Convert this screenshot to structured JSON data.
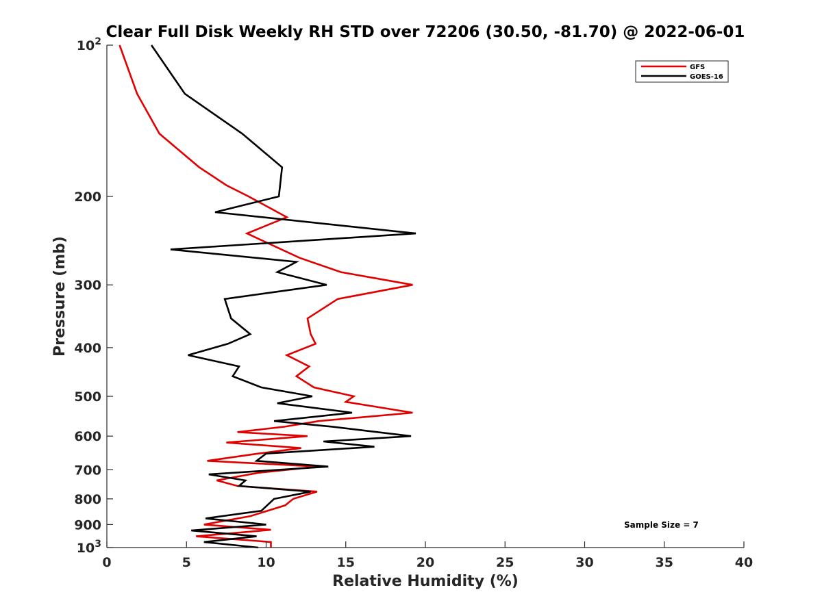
{
  "chart_data": {
    "type": "line",
    "title": "Clear Full Disk Weekly RH STD over 72206 (30.50, -81.70) @ 2022-06-01",
    "xlabel": "Relative Humidity (%)",
    "ylabel": "Pressure (mb)",
    "xlim": [
      0,
      40
    ],
    "ylim": [
      100,
      1000
    ],
    "y_scale": "log",
    "y_reversed": true,
    "grid": false,
    "legend_position": "top-right",
    "x_ticks": [
      0,
      5,
      10,
      15,
      20,
      25,
      30,
      35,
      40
    ],
    "x_tick_labels": [
      "0",
      "5",
      "10",
      "15",
      "20",
      "25",
      "30",
      "35",
      "40"
    ],
    "y_ticks": [
      100,
      200,
      300,
      400,
      500,
      600,
      700,
      800,
      900,
      1000
    ],
    "y_tick_labels": [
      {
        "base": "10",
        "exp": "2"
      },
      {
        "base": "200",
        "exp": ""
      },
      {
        "base": "300",
        "exp": ""
      },
      {
        "base": "400",
        "exp": ""
      },
      {
        "base": "500",
        "exp": ""
      },
      {
        "base": "600",
        "exp": ""
      },
      {
        "base": "700",
        "exp": ""
      },
      {
        "base": "800",
        "exp": ""
      },
      {
        "base": "900",
        "exp": ""
      },
      {
        "base": "10",
        "exp": "3"
      }
    ],
    "annotation": "Sample Size = 7",
    "series": [
      {
        "name": "GFS",
        "color": "#e00000",
        "points": [
          [
            0.8,
            100
          ],
          [
            1.9,
            125
          ],
          [
            3.3,
            150
          ],
          [
            5.8,
            175
          ],
          [
            7.5,
            190
          ],
          [
            8.9,
            200
          ],
          [
            11.3,
            220
          ],
          [
            8.8,
            237
          ],
          [
            12.1,
            265
          ],
          [
            14.7,
            283
          ],
          [
            19.2,
            300
          ],
          [
            14.5,
            320
          ],
          [
            12.6,
            350
          ],
          [
            12.8,
            376
          ],
          [
            13.1,
            393
          ],
          [
            11.3,
            414
          ],
          [
            12.7,
            436
          ],
          [
            11.9,
            456
          ],
          [
            13.0,
            480
          ],
          [
            15.5,
            500
          ],
          [
            15.0,
            513
          ],
          [
            19.2,
            539
          ],
          [
            13.3,
            560
          ],
          [
            11.1,
            575
          ],
          [
            8.2,
            589
          ],
          [
            12.6,
            600
          ],
          [
            7.5,
            618
          ],
          [
            12.2,
            634
          ],
          [
            9.5,
            650
          ],
          [
            6.3,
            672
          ],
          [
            13.3,
            690
          ],
          [
            9.5,
            710
          ],
          [
            6.9,
            735
          ],
          [
            8.2,
            754
          ],
          [
            13.2,
            774
          ],
          [
            11.7,
            800
          ],
          [
            11.2,
            824
          ],
          [
            9.0,
            866
          ],
          [
            6.1,
            900
          ],
          [
            10.3,
            922
          ],
          [
            5.6,
            950
          ],
          [
            10.3,
            975
          ],
          [
            10.3,
            1000
          ]
        ]
      },
      {
        "name": "GOES-16",
        "color": "#000000",
        "points": [
          [
            2.8,
            100
          ],
          [
            4.9,
            125
          ],
          [
            8.5,
            150
          ],
          [
            11.0,
            175
          ],
          [
            10.8,
            200
          ],
          [
            6.8,
            215
          ],
          [
            19.4,
            237
          ],
          [
            4.0,
            255
          ],
          [
            11.9,
            270
          ],
          [
            10.7,
            283
          ],
          [
            13.8,
            300
          ],
          [
            7.4,
            320
          ],
          [
            7.8,
            350
          ],
          [
            9.0,
            376
          ],
          [
            7.6,
            393
          ],
          [
            5.1,
            414
          ],
          [
            8.3,
            436
          ],
          [
            7.9,
            456
          ],
          [
            9.7,
            480
          ],
          [
            12.9,
            500
          ],
          [
            10.7,
            516
          ],
          [
            15.4,
            539
          ],
          [
            10.5,
            560
          ],
          [
            14.2,
            575
          ],
          [
            19.1,
            600
          ],
          [
            13.6,
            615
          ],
          [
            16.8,
            630
          ],
          [
            10.0,
            650
          ],
          [
            9.4,
            672
          ],
          [
            13.9,
            690
          ],
          [
            6.4,
            715
          ],
          [
            8.7,
            735
          ],
          [
            8.3,
            754
          ],
          [
            12.8,
            774
          ],
          [
            10.5,
            800
          ],
          [
            9.7,
            845
          ],
          [
            6.2,
            875
          ],
          [
            10.0,
            900
          ],
          [
            5.3,
            925
          ],
          [
            9.4,
            950
          ],
          [
            6.1,
            975
          ],
          [
            9.5,
            1000
          ]
        ]
      }
    ]
  }
}
